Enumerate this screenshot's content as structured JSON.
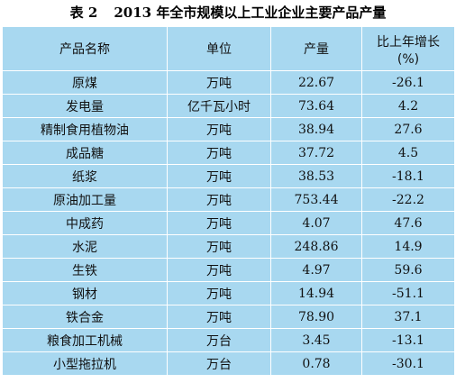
{
  "caption": {
    "number": "表 2",
    "title": "2013 年全市规模以上工业企业主要产品产量"
  },
  "table": {
    "headers": {
      "name": "产品名称",
      "unit": "单位",
      "output": "产量",
      "growth_line1": "比上年增长",
      "growth_line2": "(%)"
    },
    "rows": [
      {
        "name": "原煤",
        "unit": "万吨",
        "output": "22.67",
        "growth": "-26.1"
      },
      {
        "name": "发电量",
        "unit": "亿千瓦小时",
        "output": "73.64",
        "growth": "4.2"
      },
      {
        "name": "精制食用植物油",
        "unit": "万吨",
        "output": "38.94",
        "growth": "27.6"
      },
      {
        "name": "成品糖",
        "unit": "万吨",
        "output": "37.72",
        "growth": "4.5"
      },
      {
        "name": "纸浆",
        "unit": "万吨",
        "output": "38.53",
        "growth": "-18.1"
      },
      {
        "name": "原油加工量",
        "unit": "万吨",
        "output": "753.44",
        "growth": "-22.2"
      },
      {
        "name": "中成药",
        "unit": "万吨",
        "output": "4.07",
        "growth": "47.6"
      },
      {
        "name": "水泥",
        "unit": "万吨",
        "output": "248.86",
        "growth": "14.9"
      },
      {
        "name": "生铁",
        "unit": "万吨",
        "output": "4.97",
        "growth": "59.6"
      },
      {
        "name": "钢材",
        "unit": "万吨",
        "output": "14.94",
        "growth": "-51.1"
      },
      {
        "name": "铁合金",
        "unit": "万吨",
        "output": "78.90",
        "growth": "37.1"
      },
      {
        "name": "粮食加工机械",
        "unit": "万台",
        "output": "3.45",
        "growth": "-13.1"
      },
      {
        "name": "小型拖拉机",
        "unit": "万台",
        "output": "0.78",
        "growth": "-30.1"
      }
    ]
  },
  "colors": {
    "table_background": "#a8d8f0",
    "grid_lines": "#ffffff",
    "text": "#111111"
  }
}
